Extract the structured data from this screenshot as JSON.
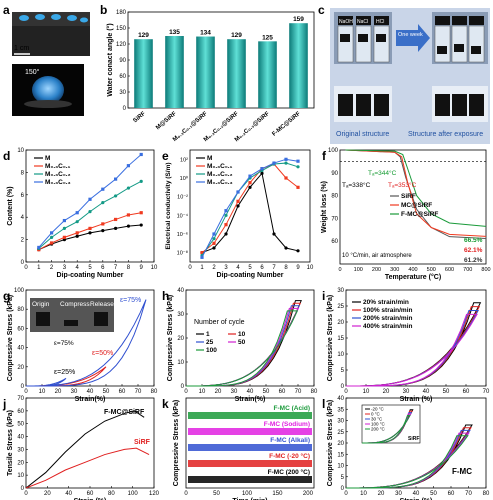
{
  "panels": {
    "a": {
      "letter": "a",
      "scale": "1 cm",
      "angle": "150°"
    },
    "b": {
      "letter": "b"
    },
    "c": {
      "letter": "c",
      "bottles": [
        "NaOH",
        "NaCl",
        "HCl"
      ],
      "arrow": "One week",
      "caption_left": "Original structure",
      "caption_right": "Structure after exposure"
    },
    "d": {
      "letter": "d"
    },
    "e": {
      "letter": "e"
    },
    "f": {
      "letter": "f",
      "t1": "Tₐ=344°C",
      "t2": "Tₐ=338°C",
      "t3": "Tₐ=353°C",
      "pct1": "66.5%",
      "pct2": "62.1%",
      "pct3": "61.2%",
      "cond": "10 °C/min, air atmosphere"
    },
    "g": {
      "letter": "g",
      "photos": [
        "Origin",
        "Compress",
        "Release"
      ],
      "eps_photo": "ε=75%",
      "e75": "ε=75%",
      "e50": "ε=50%",
      "e25": "ε=25%"
    },
    "h": {
      "letter": "h",
      "legend_title": "Number of cycle"
    },
    "i": {
      "letter": "i"
    },
    "j": {
      "letter": "j"
    },
    "k": {
      "letter": "k"
    },
    "l": {
      "letter": "l",
      "inset_label": "SiRF",
      "main_label": "F-MC"
    }
  },
  "chart_data": [
    {
      "panel": "b",
      "type": "bar",
      "ylabel": "Water conact angle (°)",
      "ylim": [
        0,
        180
      ],
      "categories": [
        "SiRF",
        "M@SiRF",
        "M₀.₃C₀.₁@SiRF",
        "M₀.₃C₀.₂@SiRF",
        "M₀.₃C₀.₃@SiRF",
        "F-MC@SiRF"
      ],
      "values": [
        129,
        135,
        134,
        129,
        125,
        159
      ],
      "data_labels": [
        "129",
        "135",
        "134",
        "129",
        "125",
        "159"
      ],
      "yticks": [
        "0",
        "30",
        "60",
        "90",
        "120",
        "150",
        "180"
      ]
    },
    {
      "panel": "d",
      "type": "line",
      "xlabel": "Dip-coating Number",
      "ylabel": "Content (%)",
      "xlim": [
        0,
        10
      ],
      "ylim": [
        0,
        10
      ],
      "xticks": [
        "0",
        "1",
        "2",
        "3",
        "4",
        "5",
        "6",
        "7",
        "8",
        "9",
        "10"
      ],
      "yticks": [
        "0",
        "2",
        "4",
        "6",
        "8",
        "10"
      ],
      "x": [
        1,
        2,
        3,
        4,
        5,
        6,
        7,
        8,
        9
      ],
      "series": [
        {
          "name": "M",
          "color": "#000000",
          "values": [
            1.1,
            1.6,
            2.0,
            2.3,
            2.6,
            2.8,
            3.0,
            3.2,
            3.3
          ]
        },
        {
          "name": "M₀.₃C₀.₁",
          "color": "#f03a20",
          "values": [
            1.1,
            1.7,
            2.2,
            2.6,
            3.0,
            3.4,
            3.8,
            4.2,
            4.4
          ]
        },
        {
          "name": "M₀.₃C₀.₂",
          "color": "#139a86",
          "values": [
            1.2,
            2.2,
            3.0,
            3.6,
            4.5,
            5.3,
            5.9,
            6.6,
            7.2
          ]
        },
        {
          "name": "M₀.₃C₀.₃",
          "color": "#3a6fe0",
          "values": [
            1.3,
            2.6,
            3.7,
            4.4,
            5.6,
            6.5,
            7.4,
            8.6,
            9.6
          ]
        }
      ]
    },
    {
      "panel": "e",
      "type": "line",
      "xlabel": "Dip-coating Number",
      "ylabel": "Electrical conductivity (S/m)",
      "xlim": [
        0,
        10
      ],
      "ylim_log10": [
        -9,
        3
      ],
      "log_y": true,
      "xticks": [
        "0",
        "1",
        "2",
        "3",
        "4",
        "5",
        "6",
        "7",
        "8",
        "9",
        "10"
      ],
      "yticks": [
        "10⁻⁸",
        "10⁻⁶",
        "10⁻⁴",
        "10⁻²",
        "10⁰",
        "10²"
      ],
      "x": [
        1,
        2,
        3,
        4,
        5,
        6,
        7,
        8,
        9
      ],
      "series": [
        {
          "name": "M",
          "color": "#000000",
          "log_values": [
            -8,
            -7.5,
            -6,
            -3,
            -1,
            0.5,
            -6,
            -7.5,
            -7.8
          ]
        },
        {
          "name": "M₀.₃C₀.₁",
          "color": "#f03a20",
          "log_values": [
            -8,
            -7,
            -5,
            -2.5,
            -0.5,
            1,
            1.5,
            0,
            -1
          ]
        },
        {
          "name": "M₀.₃C₀.₂",
          "color": "#139a86",
          "log_values": [
            -8.3,
            -6.5,
            -4,
            -1.5,
            0,
            0.8,
            1.5,
            1.6,
            1.2
          ]
        },
        {
          "name": "M₀.₃C₀.₃",
          "color": "#3a6fe0",
          "log_values": [
            -8.5,
            -6,
            -3.5,
            -1.5,
            0.2,
            1,
            1.6,
            2.0,
            1.8
          ]
        }
      ]
    },
    {
      "panel": "f",
      "type": "line",
      "xlabel": "Temperature (°C)",
      "ylabel": "Weight loss (%)",
      "xlim": [
        0,
        800
      ],
      "ylim": [
        50,
        100
      ],
      "xticks": [
        "0",
        "100",
        "200",
        "300",
        "400",
        "500",
        "600",
        "700",
        "800"
      ],
      "yticks": [
        "60",
        "70",
        "80",
        "90",
        "100"
      ],
      "series": [
        {
          "name": "SiRF",
          "color": "#555555",
          "x": [
            30,
            300,
            330,
            360,
            420,
            500,
            600,
            800
          ],
          "values": [
            100,
            99,
            97,
            88,
            74,
            66,
            62,
            61.2
          ]
        },
        {
          "name": "MC@SiRF",
          "color": "#f03a20",
          "x": [
            30,
            300,
            338,
            370,
            420,
            500,
            600,
            800
          ],
          "values": [
            100,
            99,
            97,
            86,
            72,
            66,
            63,
            62.1
          ]
        },
        {
          "name": "F-MC@SiRF",
          "color": "#1a9a3a",
          "x": [
            30,
            300,
            344,
            370,
            420,
            500,
            600,
            800
          ],
          "values": [
            100,
            99.5,
            98,
            92,
            80,
            72,
            68,
            66.5
          ]
        }
      ]
    },
    {
      "panel": "g",
      "type": "line",
      "xlabel": "Strain(%)",
      "ylabel": "Compressive Stress (kPa)",
      "xlim": [
        0,
        80
      ],
      "ylim": [
        0,
        100
      ],
      "xticks": [
        "0",
        "10",
        "20",
        "30",
        "40",
        "50",
        "60",
        "70",
        "80"
      ],
      "yticks": [
        "0",
        "20",
        "40",
        "60",
        "80",
        "100"
      ],
      "series": [
        {
          "name": "ε=25%",
          "color": "#3050d0",
          "max_strain": 25,
          "max_stress": 8
        },
        {
          "name": "ε=50%",
          "color": "#e02020",
          "max_strain": 50,
          "max_stress": 20
        },
        {
          "name": "ε=75%",
          "color": "#3050d0",
          "max_strain": 75,
          "max_stress": 90
        }
      ]
    },
    {
      "panel": "h",
      "type": "line",
      "xlabel": "Strain(%)",
      "ylabel": "Compressive Stress (kPa)",
      "xlim": [
        0,
        80
      ],
      "ylim": [
        0,
        45
      ],
      "xticks": [
        "0",
        "10",
        "20",
        "30",
        "40",
        "50",
        "60",
        "70",
        "80"
      ],
      "yticks": [
        "0",
        "10",
        "20",
        "30",
        "40"
      ],
      "series": [
        {
          "name": "1",
          "color": "#000000"
        },
        {
          "name": "10",
          "color": "#e02020"
        },
        {
          "name": "25",
          "color": "#3050d0"
        },
        {
          "name": "50",
          "color": "#d020d0"
        },
        {
          "name": "100",
          "color": "#1a9a3a"
        }
      ],
      "max_strain": 72,
      "max_stress": 40
    },
    {
      "panel": "i",
      "type": "line",
      "xlabel": "Strain (%)",
      "ylabel": "Compressive Stress (kPa)",
      "xlim": [
        0,
        75
      ],
      "ylim": [
        0,
        30
      ],
      "xticks": [
        "0",
        "10",
        "20",
        "30",
        "40",
        "50",
        "60",
        "70"
      ],
      "yticks": [
        "0",
        "5",
        "10",
        "15",
        "20",
        "25",
        "30"
      ],
      "series": [
        {
          "name": "20% strain/min",
          "color": "#000000"
        },
        {
          "name": "100% strain/min",
          "color": "#e02020"
        },
        {
          "name": "200% strain/min",
          "color": "#3050d0"
        },
        {
          "name": "400% strain/min",
          "color": "#d020d0"
        }
      ],
      "max_strain": 72,
      "max_stress": 26
    },
    {
      "panel": "j",
      "type": "line",
      "xlabel": "Strain (%)",
      "ylabel": "Tensile Stress (kPa)",
      "xlim": [
        0,
        130
      ],
      "ylim": [
        0,
        70
      ],
      "xticks": [
        "0",
        "20",
        "40",
        "60",
        "80",
        "100",
        "120"
      ],
      "yticks": [
        "0",
        "10",
        "20",
        "30",
        "40",
        "50",
        "60",
        "70"
      ],
      "series": [
        {
          "name": "F-MC@SiRF",
          "color": "#000000",
          "x": [
            0,
            20,
            40,
            60,
            80,
            100,
            110,
            120
          ],
          "values": [
            0,
            12,
            28,
            42,
            52,
            58,
            60,
            55
          ]
        },
        {
          "name": "SiRF",
          "color": "#e02020",
          "x": [
            0,
            20,
            40,
            60,
            80,
            100,
            112,
            125
          ],
          "values": [
            0,
            6,
            14,
            20,
            26,
            30,
            31,
            26
          ]
        }
      ]
    },
    {
      "panel": "k",
      "type": "line",
      "xlabel": "Time (min)",
      "ylabel": "Compressive Stress (kPa)",
      "xlim": [
        0,
        210
      ],
      "xticks": [
        "0",
        "50",
        "100",
        "150",
        "200"
      ],
      "series": [
        {
          "name": "F-MC (Acid)",
          "color": "#1a9a3a"
        },
        {
          "name": "F-MC (Sodium)",
          "color": "#e020e0"
        },
        {
          "name": "F-MC (Alkali)",
          "color": "#3050d0"
        },
        {
          "name": "F-MC (-20 °C)",
          "color": "#e02020"
        },
        {
          "name": "F-MC (200 °C)",
          "color": "#000000"
        }
      ]
    },
    {
      "panel": "l",
      "type": "line",
      "xlabel": "Strain (%)",
      "ylabel": "Compressive Stress (kPa)",
      "xlim": [
        0,
        80
      ],
      "ylim": [
        0,
        40
      ],
      "xticks": [
        "0",
        "10",
        "20",
        "30",
        "40",
        "50",
        "60",
        "70",
        "80"
      ],
      "yticks": [
        "0",
        "5",
        "10",
        "15",
        "20",
        "25",
        "30",
        "35",
        "40"
      ],
      "series": [
        {
          "name": "-20 °C",
          "color": "#000000"
        },
        {
          "name": "0 °C",
          "color": "#e02020"
        },
        {
          "name": "30 °C",
          "color": "#3050d0"
        },
        {
          "name": "100 °C",
          "color": "#d020d0"
        },
        {
          "name": "200 °C",
          "color": "#1a9a3a"
        }
      ],
      "max_strain": 72,
      "max_stress": 28
    }
  ]
}
